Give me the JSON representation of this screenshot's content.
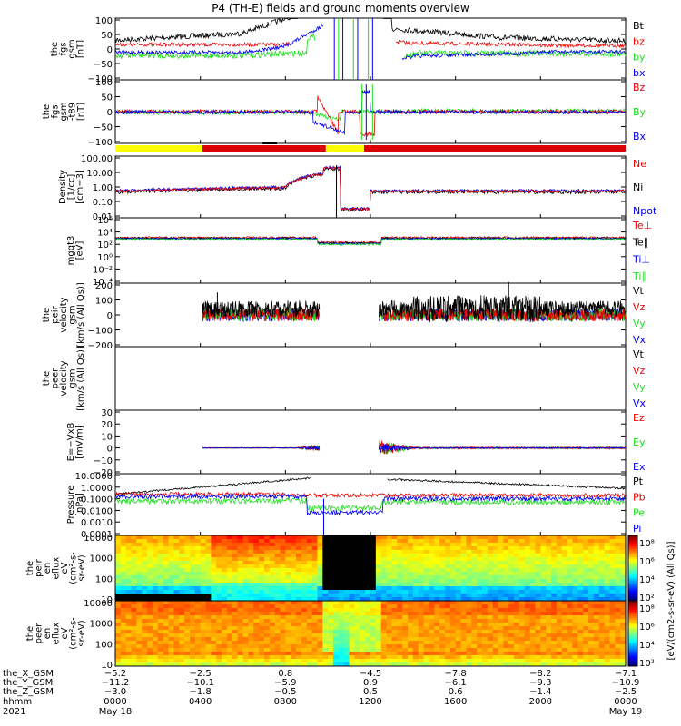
{
  "title": "P4 (TH-E) fields and ground moments overview",
  "colors": {
    "black": "#000000",
    "red": "#ee0000",
    "green": "#22dd22",
    "blue": "#0000ee",
    "yellow": "#ffff00",
    "barred": "#dd0000"
  },
  "chart_data": [
    {
      "type": "line",
      "id": "fgs",
      "ylabel": [
        "the",
        "fgs",
        "gsm",
        "[nT]"
      ],
      "yticks": [
        "100",
        "50",
        "0",
        "−50",
        "−100"
      ],
      "ylim": [
        -100,
        100
      ],
      "legend": [
        {
          "name": "Bt",
          "color": "black"
        },
        {
          "name": "bz",
          "color": "red"
        },
        {
          "name": "by",
          "color": "green"
        },
        {
          "name": "bx",
          "color": "blue"
        }
      ]
    },
    {
      "type": "line",
      "id": "fgs-t89",
      "ylabel": [
        "the",
        "fgs",
        "gsm",
        "-t89",
        "[nT]"
      ],
      "yticks": [
        "100",
        "50",
        "0",
        "−50",
        "−100"
      ],
      "ylim": [
        -120,
        120
      ],
      "legend": [
        {
          "name": "Bz",
          "color": "red"
        },
        {
          "name": "By",
          "color": "green"
        },
        {
          "name": "Bx",
          "color": "blue"
        }
      ]
    },
    {
      "type": "line",
      "id": "density",
      "ylabel": [
        "Density",
        "[1/cc]",
        "[cm−3]"
      ],
      "yticks": [
        "100.00",
        "10.00",
        "1.00",
        "0.10",
        "0.01"
      ],
      "log": true,
      "legend": [
        {
          "name": "Ne",
          "color": "red"
        },
        {
          "name": "Ni",
          "color": "black"
        },
        {
          "name": "Npot",
          "color": "blue"
        }
      ]
    },
    {
      "type": "line",
      "id": "temperature",
      "ylabel": [
        "mgqt3",
        "[eV]"
      ],
      "yticks": [
        "10⁶",
        "10⁴",
        "10²",
        "10⁰",
        "10⁻²",
        "10⁻⁴"
      ],
      "log": true,
      "legend": [
        {
          "name": "Te⊥",
          "color": "red"
        },
        {
          "name": "Te∥",
          "color": "black"
        },
        {
          "name": "Ti⊥",
          "color": "blue"
        },
        {
          "name": "Ti∥",
          "color": "green"
        }
      ]
    },
    {
      "type": "line",
      "id": "peir-velocity",
      "ylabel": [
        "the",
        "peir",
        "velocity",
        "gsm",
        "[km/s (All Qs)]"
      ],
      "yticks": [
        "200",
        "100",
        "0",
        "−100",
        "−200"
      ],
      "ylim": [
        -200,
        200
      ],
      "legend": [
        {
          "name": "Vt",
          "color": "black"
        },
        {
          "name": "Vz",
          "color": "red"
        },
        {
          "name": "Vy",
          "color": "green"
        },
        {
          "name": "Vx",
          "color": "blue"
        }
      ]
    },
    {
      "type": "line",
      "id": "peer-velocity",
      "ylabel": [
        "the",
        "peer",
        "velocity",
        "gsm",
        "[km/s (All Qs)]"
      ],
      "yticks": [],
      "legend": [
        {
          "name": "Vt",
          "color": "black"
        },
        {
          "name": "Vz",
          "color": "red"
        },
        {
          "name": "Vy",
          "color": "green"
        },
        {
          "name": "Vx",
          "color": "blue"
        }
      ]
    },
    {
      "type": "line",
      "id": "efield",
      "ylabel": [
        "E=−VxB",
        "[mV/m]"
      ],
      "yticks": [
        "30",
        "20",
        "10",
        "0",
        "−10",
        "−20"
      ],
      "ylim": [
        -20,
        30
      ],
      "legend": [
        {
          "name": "Ez",
          "color": "red"
        },
        {
          "name": "Ey",
          "color": "green"
        },
        {
          "name": "Ex",
          "color": "blue"
        }
      ]
    },
    {
      "type": "line",
      "id": "pressure",
      "ylabel": [
        "Pressure",
        "[nPa]"
      ],
      "yticks": [
        "10.0000",
        "1.0000",
        "0.1000",
        "0.0100",
        "0.0010",
        "0.0001"
      ],
      "log": true,
      "legend": [
        {
          "name": "Pt",
          "color": "black"
        },
        {
          "name": "Pb",
          "color": "red"
        },
        {
          "name": "Pe",
          "color": "green"
        },
        {
          "name": "Pi",
          "color": "blue"
        }
      ]
    },
    {
      "type": "heatmap",
      "id": "peir-eflux",
      "ylabel": [
        "the",
        "peir",
        "en",
        "eflux",
        "eV",
        "(cm²-s-",
        "sr-eV)"
      ],
      "yticks": [
        "10000",
        "1000",
        "100",
        "10"
      ],
      "log": true
    },
    {
      "type": "heatmap",
      "id": "peer-eflux",
      "ylabel": [
        "the",
        "peer",
        "en",
        "eflux",
        "eV",
        "(cm²-s-",
        "sr-eV)"
      ],
      "yticks": [
        "10000",
        "1000",
        "100",
        "10"
      ],
      "log": true
    }
  ],
  "colorbar": {
    "label": "[eV/(cm2-s-sr-eV) (All Qs)]",
    "ticks_top": [
      "10⁸",
      "10⁶",
      "10⁴",
      "10²"
    ],
    "ticks_bottom": [
      "10⁸",
      "10⁶",
      "10⁴",
      "10²"
    ]
  },
  "xaxis": {
    "row_labels": [
      "the_X_GSM",
      "the_Y_GSM",
      "the_Z_GSM",
      "hhmm",
      "2021"
    ],
    "columns": [
      {
        "x": "−5.2",
        "y": "−11.2",
        "z": "−3.0",
        "hhmm": "0000",
        "date": "May 18"
      },
      {
        "x": "−2.5",
        "y": "−10.1",
        "z": "−1.8",
        "hhmm": "0400",
        "date": ""
      },
      {
        "x": "0.8",
        "y": "−5.9",
        "z": "−0.5",
        "hhmm": "0800",
        "date": ""
      },
      {
        "x": "−4.5",
        "y": "0.9",
        "z": "0.5",
        "hhmm": "1200",
        "date": ""
      },
      {
        "x": "−7.8",
        "y": "−6.1",
        "z": "0.6",
        "hhmm": "1600",
        "date": ""
      },
      {
        "x": "−8.2",
        "y": "−9.3",
        "z": "−1.4",
        "hhmm": "2000",
        "date": ""
      },
      {
        "x": "−7.1",
        "y": "−10.9",
        "z": "−2.5",
        "hhmm": "0000",
        "date": "May 19"
      }
    ]
  }
}
